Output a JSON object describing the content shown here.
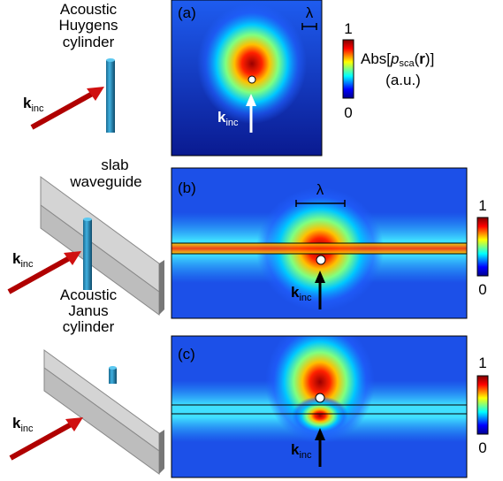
{
  "left": [
    {
      "caption": [
        "Acoustic",
        "Huygens",
        "cylinder"
      ],
      "k": {
        "main": "k",
        "sub": "inc"
      }
    },
    {
      "caption": [
        "slab",
        "waveguide"
      ],
      "k": {
        "main": "k",
        "sub": "inc"
      }
    },
    {
      "caption": [
        "Acoustic",
        "Janus",
        "cylinder"
      ],
      "k": {
        "main": "k",
        "sub": "inc"
      }
    }
  ],
  "panels": [
    {
      "label": "(a)",
      "scale": "λ",
      "k": {
        "main": "k",
        "sub": "inc"
      },
      "colorbar": {
        "max": 1,
        "min": 0
      }
    },
    {
      "label": "(b)",
      "scale": "λ",
      "k": {
        "main": "k",
        "sub": "inc"
      },
      "colorbar": {
        "max": 1,
        "min": 0
      }
    },
    {
      "label": "(c)",
      "k": {
        "main": "k",
        "sub": "inc"
      },
      "colorbar": {
        "max": 1,
        "min": 0
      }
    }
  ],
  "colorbar_title": {
    "pre": "Abs[",
    "p": "p",
    "sub": "sca",
    "mid": "(",
    "r": "r",
    "post": ")]",
    "units": "(a.u.)"
  }
}
